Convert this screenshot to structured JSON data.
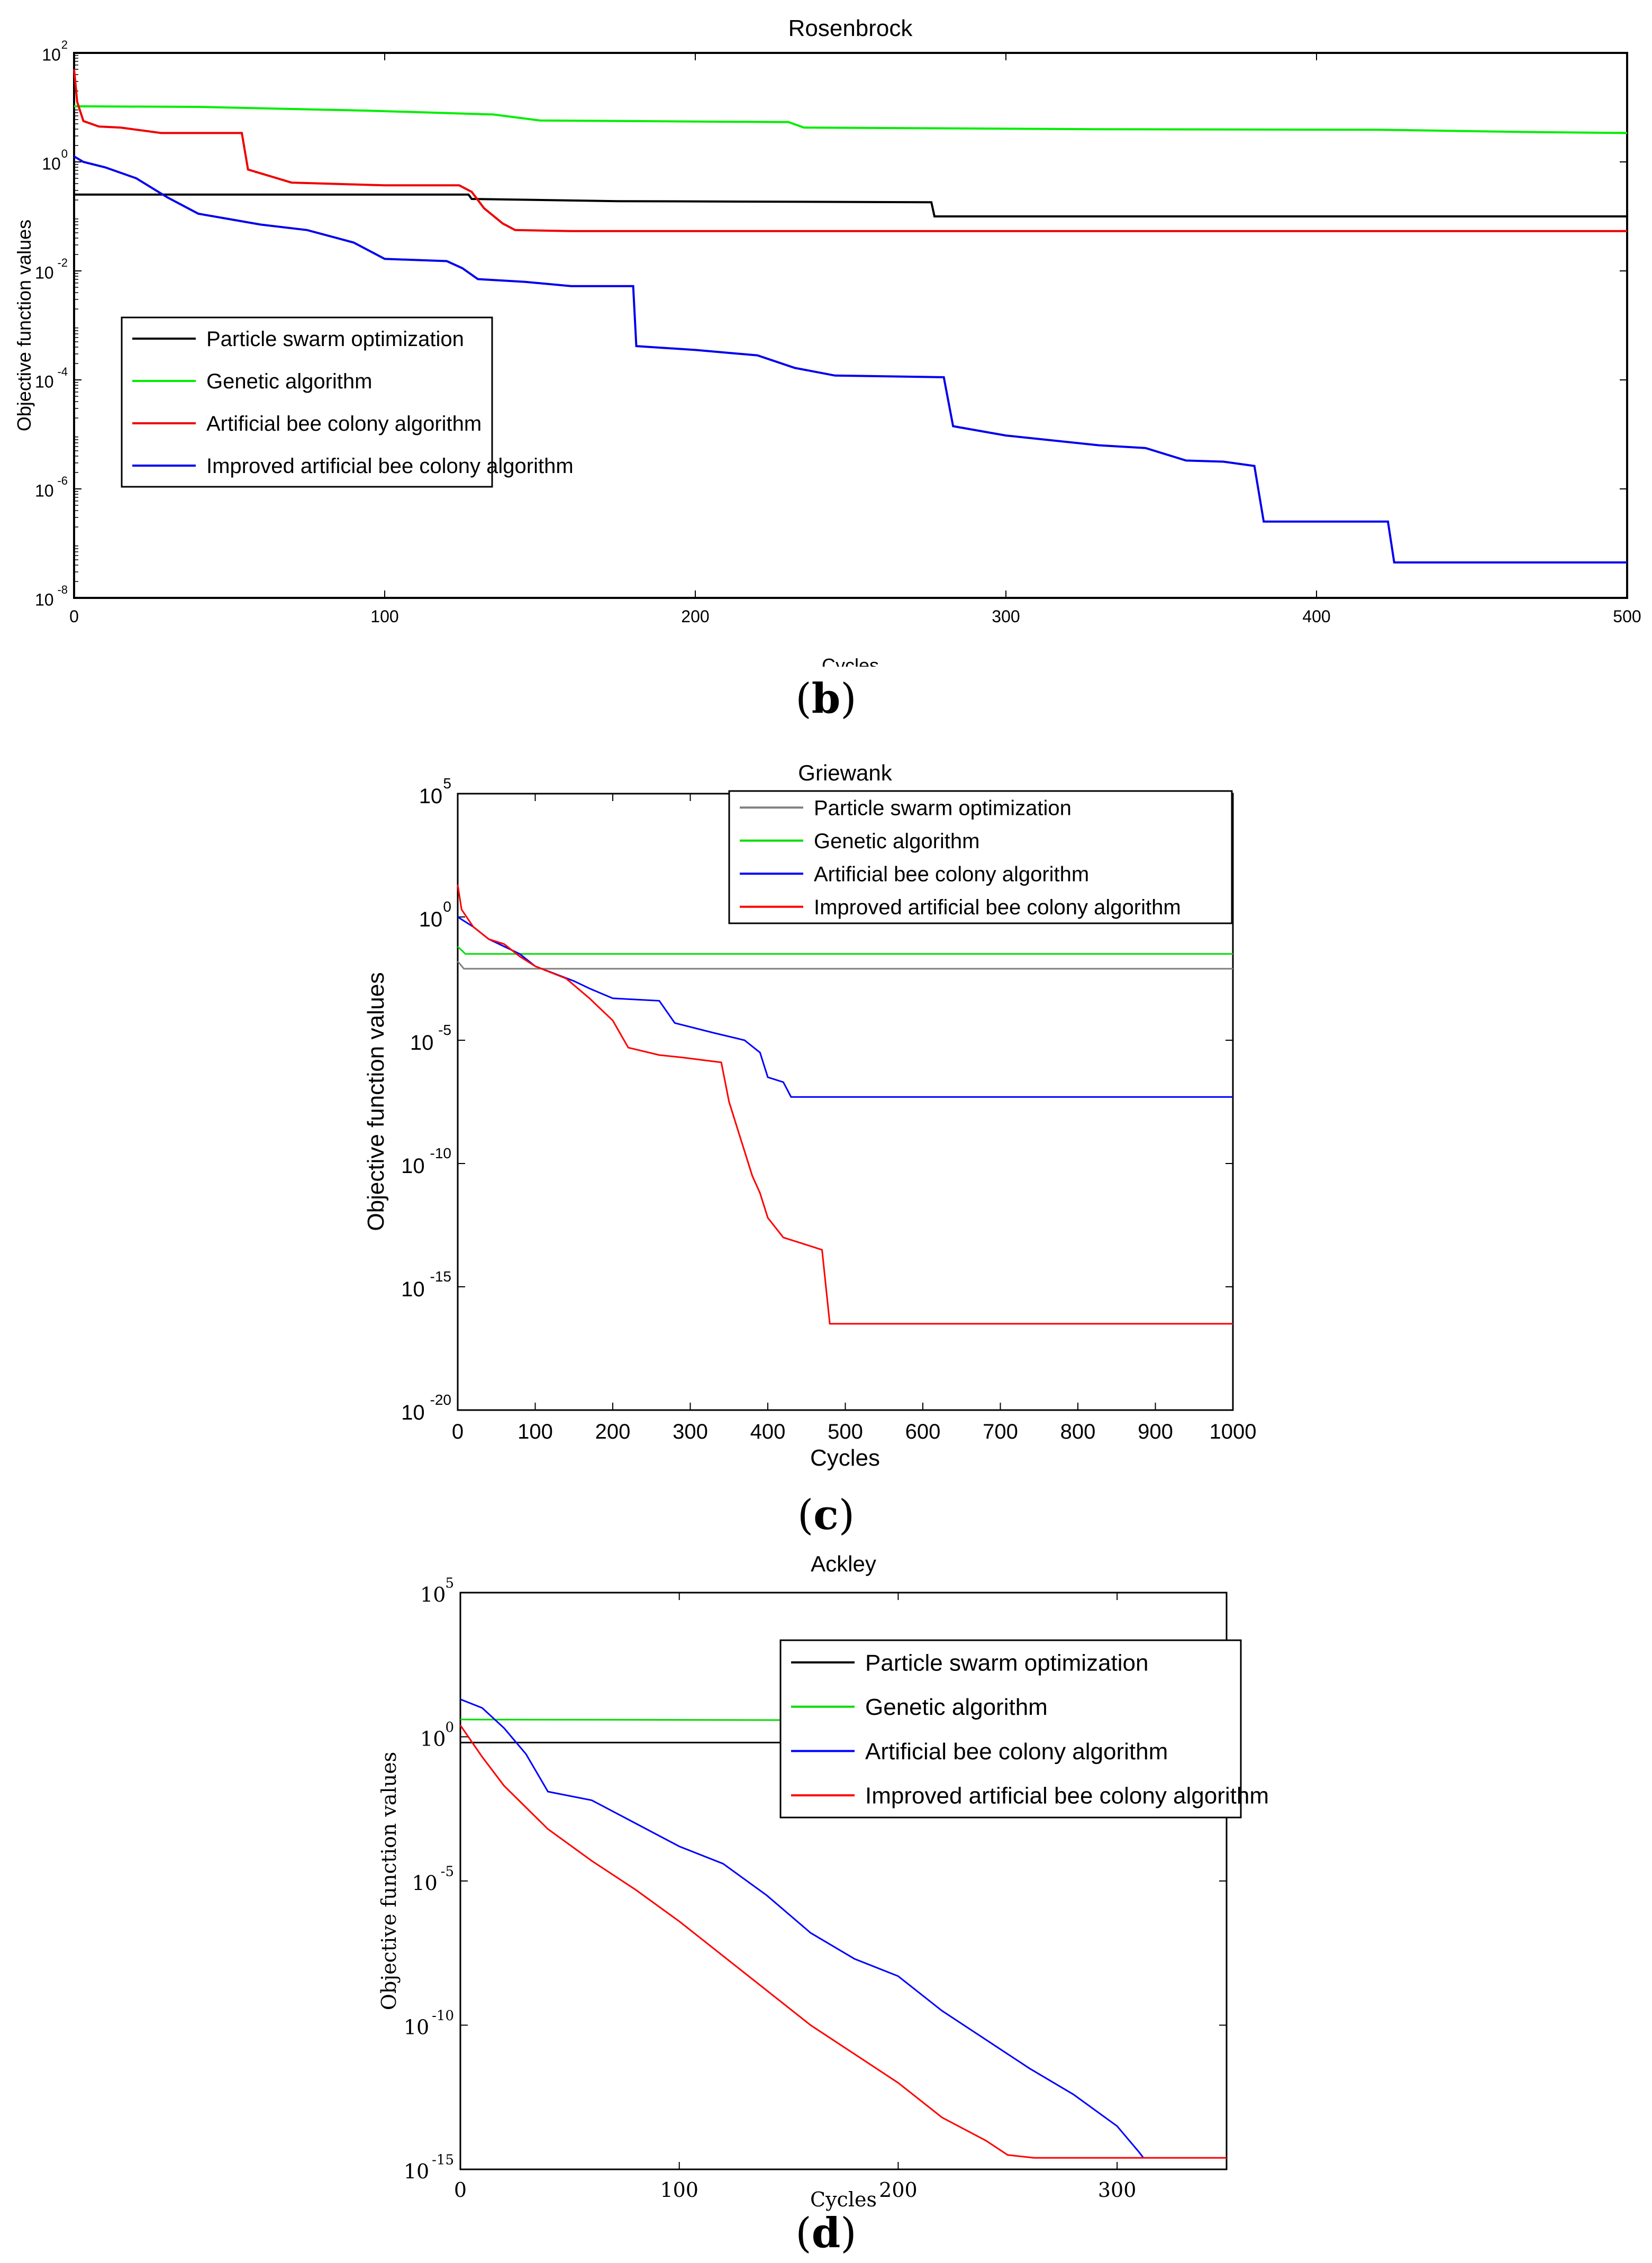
{
  "chart_data": [
    {
      "id": "b",
      "type": "line",
      "title": "Rosenbrock",
      "xlabel": "Cycles",
      "ylabel": "Objective function values",
      "caption": "b",
      "xlim": [
        0,
        500
      ],
      "ylog": true,
      "ylim_exp": [
        -8,
        2
      ],
      "x_ticks": [
        "0",
        "100",
        "200",
        "300",
        "400",
        "500"
      ],
      "x_tick_values": [
        0,
        100,
        200,
        300,
        400,
        500
      ],
      "y_tick_exps": [
        -8,
        -6,
        -4,
        -2,
        0,
        2
      ],
      "y_tick_base": "10",
      "y_tick_exp_labels": [
        "-8",
        "-6",
        "-4",
        "-2",
        "0",
        "2"
      ],
      "legend_position": "left",
      "series": [
        {
          "name": "Particle swarm optimization",
          "color": "#000000",
          "points": [
            [
              0,
              -0.6
            ],
            [
              127,
              -0.6
            ],
            [
              128,
              -0.68
            ],
            [
              175,
              -0.72
            ],
            [
              276,
              -0.74
            ],
            [
              277,
              -1.0
            ],
            [
              500,
              -1.0
            ]
          ]
        },
        {
          "name": "Genetic algorithm",
          "color": "#00ee00",
          "points": [
            [
              0,
              1.02
            ],
            [
              40,
              1.01
            ],
            [
              95,
              0.94
            ],
            [
              135,
              0.87
            ],
            [
              150,
              0.76
            ],
            [
              230,
              0.73
            ],
            [
              235,
              0.63
            ],
            [
              330,
              0.6
            ],
            [
              420,
              0.59
            ],
            [
              465,
              0.55
            ],
            [
              500,
              0.53
            ]
          ]
        },
        {
          "name": "Artificial bee colony algorithm",
          "color": "#ee0000",
          "points": [
            [
              0,
              1.7
            ],
            [
              1,
              1.1
            ],
            [
              3,
              0.75
            ],
            [
              8,
              0.65
            ],
            [
              15,
              0.63
            ],
            [
              28,
              0.53
            ],
            [
              54,
              0.53
            ],
            [
              56,
              -0.14
            ],
            [
              70,
              -0.38
            ],
            [
              100,
              -0.43
            ],
            [
              124,
              -0.43
            ],
            [
              128,
              -0.55
            ],
            [
              132,
              -0.85
            ],
            [
              138,
              -1.13
            ],
            [
              142,
              -1.25
            ],
            [
              160,
              -1.27
            ],
            [
              500,
              -1.27
            ]
          ]
        },
        {
          "name": "Improved artificial bee colony algorithm",
          "color": "#0000ee",
          "points": [
            [
              0,
              0.1
            ],
            [
              3,
              0.0
            ],
            [
              10,
              -0.1
            ],
            [
              20,
              -0.3
            ],
            [
              30,
              -0.65
            ],
            [
              40,
              -0.95
            ],
            [
              50,
              -1.05
            ],
            [
              60,
              -1.15
            ],
            [
              75,
              -1.25
            ],
            [
              90,
              -1.48
            ],
            [
              100,
              -1.78
            ],
            [
              120,
              -1.82
            ],
            [
              125,
              -1.95
            ],
            [
              130,
              -2.15
            ],
            [
              145,
              -2.2
            ],
            [
              160,
              -2.28
            ],
            [
              180,
              -2.28
            ],
            [
              181,
              -3.38
            ],
            [
              200,
              -3.45
            ],
            [
              220,
              -3.55
            ],
            [
              232,
              -3.78
            ],
            [
              245,
              -3.92
            ],
            [
              280,
              -3.95
            ],
            [
              283,
              -4.85
            ],
            [
              300,
              -5.02
            ],
            [
              330,
              -5.2
            ],
            [
              345,
              -5.25
            ],
            [
              358,
              -5.48
            ],
            [
              370,
              -5.5
            ],
            [
              380,
              -5.58
            ],
            [
              383,
              -6.6
            ],
            [
              423,
              -6.6
            ],
            [
              425,
              -7.35
            ],
            [
              500,
              -7.35
            ]
          ]
        }
      ]
    },
    {
      "id": "c",
      "type": "line",
      "title": "Griewank",
      "xlabel": "Cycles",
      "ylabel": "Objective function values",
      "caption": "c",
      "xlim": [
        0,
        1000
      ],
      "ylog": true,
      "ylim_exp": [
        -20,
        5
      ],
      "x_ticks": [
        "0",
        "100",
        "200",
        "300",
        "400",
        "500",
        "600",
        "700",
        "800",
        "900",
        "1000"
      ],
      "x_tick_values": [
        0,
        100,
        200,
        300,
        400,
        500,
        600,
        700,
        800,
        900,
        1000
      ],
      "y_tick_exps": [
        -20,
        -15,
        -10,
        -5,
        0,
        5
      ],
      "y_tick_base": "10",
      "y_tick_exp_labels": [
        "-20",
        "-15",
        "-10",
        "-5",
        "0",
        "5"
      ],
      "legend_position": "top-right",
      "series": [
        {
          "name": "Particle swarm optimization",
          "color": "#808080",
          "points": [
            [
              0,
              -1.8
            ],
            [
              8,
              -2.1
            ],
            [
              1000,
              -2.1
            ]
          ]
        },
        {
          "name": "Genetic algorithm",
          "color": "#00dd00",
          "points": [
            [
              0,
              -1.2
            ],
            [
              10,
              -1.5
            ],
            [
              40,
              -1.5
            ],
            [
              1000,
              -1.5
            ]
          ]
        },
        {
          "name": "Artificial bee colony algorithm",
          "color": "#0000ff",
          "points": [
            [
              0,
              0.0
            ],
            [
              20,
              -0.4
            ],
            [
              40,
              -0.9
            ],
            [
              60,
              -1.2
            ],
            [
              80,
              -1.5
            ],
            [
              100,
              -2.0
            ],
            [
              125,
              -2.3
            ],
            [
              150,
              -2.6
            ],
            [
              170,
              -2.9
            ],
            [
              200,
              -3.3
            ],
            [
              260,
              -3.4
            ],
            [
              280,
              -4.3
            ],
            [
              330,
              -4.7
            ],
            [
              370,
              -5.0
            ],
            [
              390,
              -5.5
            ],
            [
              400,
              -6.5
            ],
            [
              420,
              -6.7
            ],
            [
              430,
              -7.3
            ],
            [
              1000,
              -7.3
            ]
          ]
        },
        {
          "name": "Improved artificial bee colony algorithm",
          "color": "#ff0000",
          "points": [
            [
              0,
              1.3
            ],
            [
              5,
              0.3
            ],
            [
              20,
              -0.4
            ],
            [
              40,
              -0.9
            ],
            [
              60,
              -1.1
            ],
            [
              80,
              -1.6
            ],
            [
              100,
              -2.0
            ],
            [
              140,
              -2.5
            ],
            [
              170,
              -3.3
            ],
            [
              200,
              -4.2
            ],
            [
              220,
              -5.3
            ],
            [
              260,
              -5.6
            ],
            [
              290,
              -5.7
            ],
            [
              340,
              -5.9
            ],
            [
              350,
              -7.5
            ],
            [
              360,
              -8.5
            ],
            [
              380,
              -10.5
            ],
            [
              390,
              -11.2
            ],
            [
              400,
              -12.2
            ],
            [
              420,
              -13.0
            ],
            [
              440,
              -13.2
            ],
            [
              470,
              -13.5
            ],
            [
              480,
              -16.5
            ],
            [
              1000,
              -16.5
            ]
          ]
        }
      ]
    },
    {
      "id": "d",
      "type": "line",
      "title": "Ackley",
      "xlabel": "Cycles",
      "ylabel": "Objective function values",
      "caption": "d",
      "xlim": [
        0,
        350
      ],
      "ylog": true,
      "ylim_exp": [
        -15,
        5
      ],
      "x_ticks": [
        "0",
        "100",
        "200",
        "300"
      ],
      "x_tick_values": [
        0,
        100,
        200,
        300
      ],
      "y_tick_exps": [
        -15,
        -10,
        -5,
        0,
        5
      ],
      "y_tick_base": "10",
      "y_tick_exp_labels": [
        "-15",
        "-10",
        "-5",
        "0",
        "5"
      ],
      "legend_position": "right",
      "series": [
        {
          "name": "Particle swarm optimization",
          "color": "#000000",
          "points": [
            [
              0,
              -0.2
            ],
            [
              350,
              -0.2
            ]
          ]
        },
        {
          "name": "Genetic algorithm",
          "color": "#00dd00",
          "points": [
            [
              0,
              0.6
            ],
            [
              350,
              0.55
            ]
          ]
        },
        {
          "name": "Artificial bee colony algorithm",
          "color": "#0000ff",
          "points": [
            [
              0,
              1.3
            ],
            [
              10,
              1.0
            ],
            [
              20,
              0.3
            ],
            [
              30,
              -0.6
            ],
            [
              40,
              -1.9
            ],
            [
              60,
              -2.2
            ],
            [
              80,
              -3.0
            ],
            [
              100,
              -3.8
            ],
            [
              120,
              -4.4
            ],
            [
              140,
              -5.5
            ],
            [
              160,
              -6.8
            ],
            [
              180,
              -7.7
            ],
            [
              200,
              -8.3
            ],
            [
              220,
              -9.5
            ],
            [
              240,
              -10.5
            ],
            [
              260,
              -11.5
            ],
            [
              280,
              -12.4
            ],
            [
              300,
              -13.5
            ],
            [
              310,
              -14.4
            ],
            [
              312,
              -14.6
            ]
          ]
        },
        {
          "name": "Improved artificial bee colony algorithm",
          "color": "#ff0000",
          "points": [
            [
              0,
              0.4
            ],
            [
              10,
              -0.7
            ],
            [
              20,
              -1.7
            ],
            [
              40,
              -3.2
            ],
            [
              60,
              -4.3
            ],
            [
              80,
              -5.3
            ],
            [
              100,
              -6.4
            ],
            [
              120,
              -7.6
            ],
            [
              140,
              -8.8
            ],
            [
              160,
              -10.0
            ],
            [
              180,
              -11.0
            ],
            [
              200,
              -12.0
            ],
            [
              220,
              -13.2
            ],
            [
              240,
              -14.0
            ],
            [
              250,
              -14.5
            ],
            [
              262,
              -14.6
            ],
            [
              350,
              -14.6
            ]
          ]
        }
      ]
    }
  ]
}
